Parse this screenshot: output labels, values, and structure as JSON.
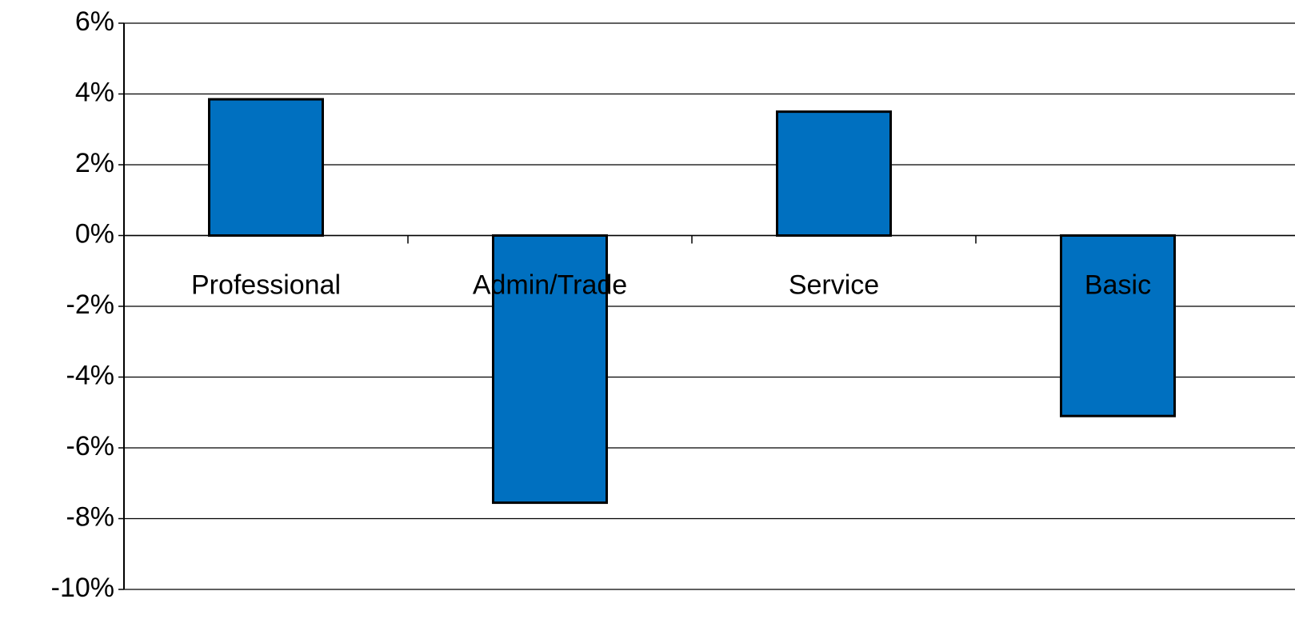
{
  "chart_data": {
    "type": "bar",
    "categories": [
      "Professional",
      "Admin/Trade",
      "Service",
      "Basic"
    ],
    "values": [
      3.85,
      -7.55,
      3.5,
      -5.1
    ],
    "color": "#0070c0",
    "ylim": [
      -10,
      6
    ],
    "yticks": [
      {
        "value": -10,
        "label": "-10%"
      },
      {
        "value": -8,
        "label": "-8%"
      },
      {
        "value": -6,
        "label": "-6%"
      },
      {
        "value": -4,
        "label": "-4%"
      },
      {
        "value": -2,
        "label": "-2%"
      },
      {
        "value": 0,
        "label": "0%"
      },
      {
        "value": 2,
        "label": "2%"
      },
      {
        "value": 4,
        "label": "4%"
      },
      {
        "value": 6,
        "label": "6%"
      }
    ],
    "grid": true
  }
}
